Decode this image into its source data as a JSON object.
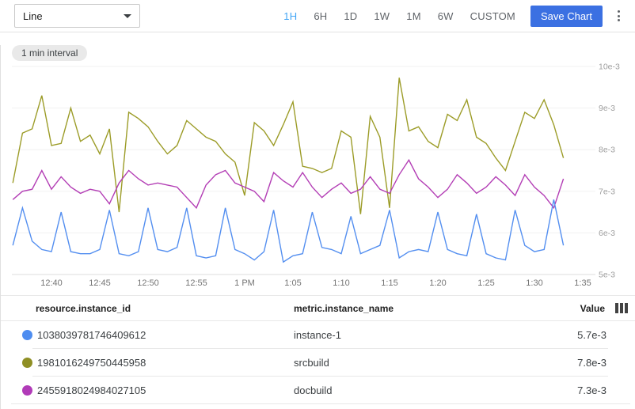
{
  "toolbar": {
    "chart_type": "Line",
    "time_ranges": [
      "1H",
      "6H",
      "1D",
      "1W",
      "1M",
      "6W",
      "CUSTOM"
    ],
    "active_range": "1H",
    "save_label": "Save Chart"
  },
  "icons": {
    "dropdown_caret": "chevron-down",
    "overflow_menu": "kebab-vertical-dots",
    "column_selector": "table-columns"
  },
  "interval_badge": "1 min interval",
  "colors": {
    "active_range_blue": "#42a5f5",
    "save_button_blue": "#3b70e2",
    "series_blue": "#548ff0",
    "series_olive": "#9c9c28",
    "series_magenta": "#b33eb5"
  },
  "chart_data": {
    "type": "line",
    "x_ticks": [
      "12:40",
      "12:45",
      "12:50",
      "12:55",
      "1 PM",
      "1:05",
      "1:10",
      "1:15",
      "1:20",
      "1:25",
      "1:30",
      "1:35"
    ],
    "y_ticks": [
      {
        "label": "10e-3",
        "value": 10
      },
      {
        "label": "9e-3",
        "value": 9
      },
      {
        "label": "8e-3",
        "value": 8
      },
      {
        "label": "7e-3",
        "value": 7
      },
      {
        "label": "6e-3",
        "value": 6
      },
      {
        "label": "5e-3",
        "value": 5
      }
    ],
    "ylim": [
      0.005,
      0.01
    ],
    "value_scale": "values are in units of 1e-3",
    "start_time": "12:36 PM",
    "interval_minutes": 1,
    "grid": true,
    "legend_position": "table-below",
    "series": [
      {
        "name": "instance-1",
        "color": "#548ff0",
        "values": [
          5.7,
          6.6,
          5.8,
          5.6,
          5.55,
          6.5,
          5.55,
          5.5,
          5.5,
          5.6,
          6.55,
          5.5,
          5.45,
          5.55,
          6.6,
          5.6,
          5.55,
          5.65,
          6.6,
          5.45,
          5.4,
          5.45,
          6.6,
          5.6,
          5.5,
          5.35,
          5.55,
          6.55,
          5.3,
          5.45,
          5.5,
          6.5,
          5.65,
          5.6,
          5.5,
          6.4,
          5.5,
          5.6,
          5.7,
          6.55,
          5.4,
          5.55,
          5.6,
          5.55,
          6.5,
          5.6,
          5.5,
          5.45,
          6.45,
          5.5,
          5.4,
          5.35,
          6.55,
          5.7,
          5.55,
          5.6,
          6.8,
          5.7
        ]
      },
      {
        "name": "srcbuild",
        "color": "#9c9c28",
        "values": [
          7.2,
          8.4,
          8.5,
          9.3,
          8.1,
          8.15,
          9.0,
          8.2,
          8.35,
          7.9,
          8.5,
          6.5,
          8.9,
          8.75,
          8.55,
          8.2,
          7.9,
          8.1,
          8.7,
          8.5,
          8.3,
          8.2,
          7.9,
          7.7,
          6.9,
          8.65,
          8.45,
          8.1,
          8.6,
          9.15,
          7.6,
          7.55,
          7.45,
          7.55,
          8.45,
          8.3,
          6.45,
          8.8,
          8.3,
          6.6,
          9.73,
          8.45,
          8.55,
          8.2,
          8.05,
          8.85,
          8.7,
          9.2,
          8.3,
          8.15,
          7.8,
          7.5,
          8.2,
          8.9,
          8.75,
          9.2,
          8.6,
          7.8
        ]
      },
      {
        "name": "docbuild",
        "color": "#b33eb5",
        "values": [
          6.8,
          7.0,
          7.05,
          7.5,
          7.05,
          7.35,
          7.1,
          6.95,
          7.05,
          7.0,
          6.7,
          7.2,
          7.5,
          7.3,
          7.15,
          7.2,
          7.15,
          7.1,
          6.85,
          6.6,
          7.15,
          7.4,
          7.5,
          7.2,
          7.1,
          7.0,
          6.75,
          7.45,
          7.25,
          7.1,
          7.45,
          7.1,
          6.85,
          7.05,
          7.2,
          6.95,
          7.05,
          7.35,
          7.05,
          6.95,
          7.4,
          7.75,
          7.3,
          7.1,
          6.85,
          7.05,
          7.4,
          7.2,
          6.95,
          7.1,
          7.35,
          7.15,
          6.9,
          7.4,
          7.1,
          6.9,
          6.6,
          7.3
        ]
      }
    ]
  },
  "table": {
    "columns": [
      "resource.instance_id",
      "metric.instance_name",
      "Value"
    ],
    "rows": [
      {
        "color": "#4e8df0",
        "instance_id": "1038039781746409612",
        "instance_name": "instance-1",
        "value": "5.7e-3"
      },
      {
        "color": "#8f8f24",
        "instance_id": "1981016249750445958",
        "instance_name": "srcbuild",
        "value": "7.8e-3"
      },
      {
        "color": "#b13bb8",
        "instance_id": "2455918024984027105",
        "instance_name": "docbuild",
        "value": "7.3e-3"
      }
    ]
  }
}
